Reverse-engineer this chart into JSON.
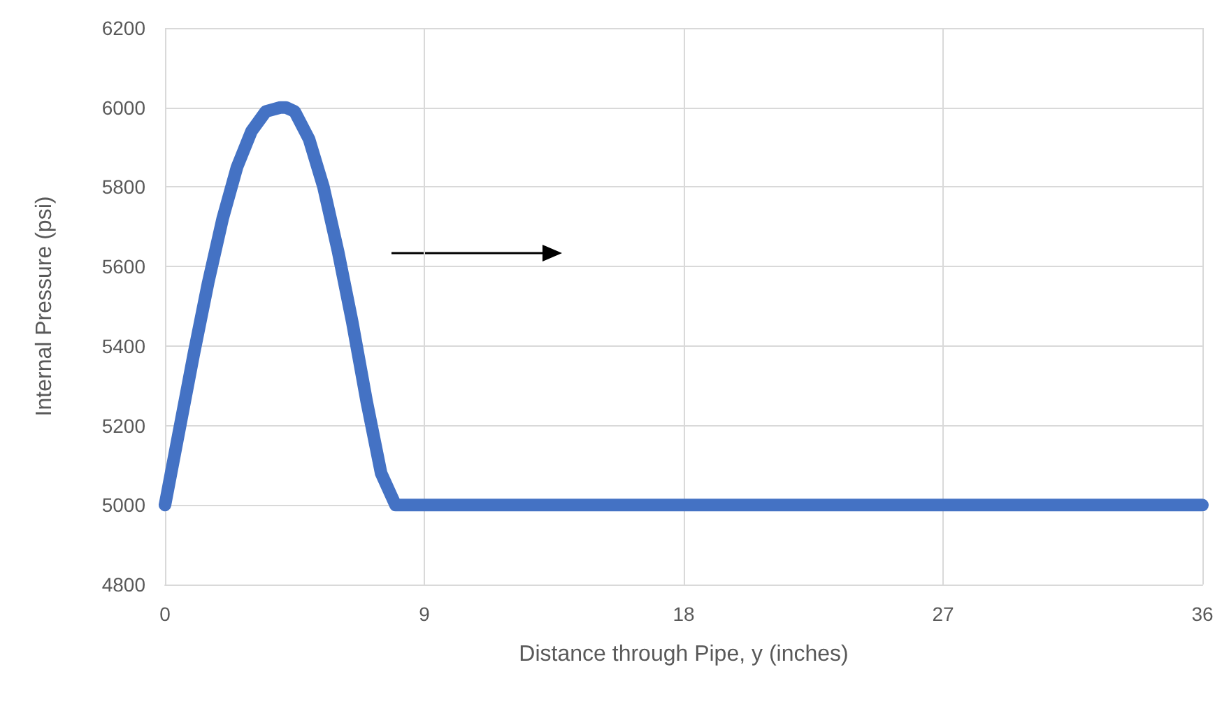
{
  "chart_data": {
    "type": "line",
    "xlabel": "Distance through Pipe, y (inches)",
    "ylabel": "Internal Pressure (psi)",
    "x": [
      0,
      0.5,
      1,
      1.5,
      2,
      2.5,
      3,
      3.5,
      4,
      4.2,
      4.5,
      5,
      5.5,
      6,
      6.5,
      7,
      7.5,
      8,
      8.2,
      36
    ],
    "series": [
      {
        "color": "#4472c4",
        "values": [
          5000,
          5190,
          5380,
          5560,
          5720,
          5850,
          5940,
          5990,
          6000,
          6000,
          5990,
          5920,
          5800,
          5640,
          5460,
          5260,
          5080,
          5000,
          5000,
          5000
        ]
      }
    ],
    "xlim": [
      0,
      36
    ],
    "xticks": [
      0,
      9,
      18,
      27,
      36
    ],
    "ylim": [
      4800,
      6200
    ],
    "yticks": [
      4800,
      5000,
      5200,
      5400,
      5600,
      5800,
      6000,
      6200
    ],
    "grid": true,
    "line_style": "solid"
  }
}
